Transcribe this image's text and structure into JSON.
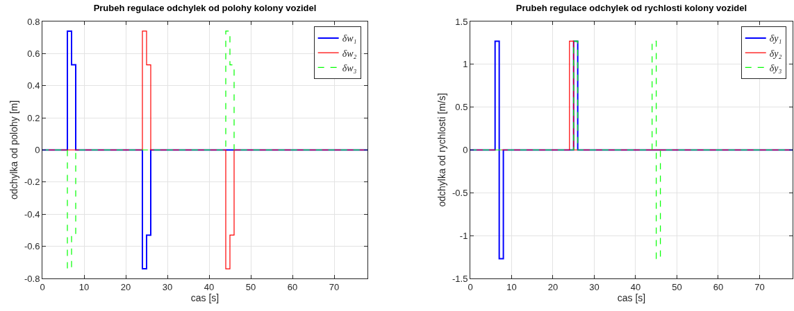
{
  "chart_data": [
    {
      "type": "step",
      "title": "Prubeh regulace odchylek od polohy kolony vozidel",
      "xlabel": "cas [s]",
      "ylabel": "odchylka od polohy [m]",
      "x": [
        0,
        6,
        7,
        8,
        24,
        25,
        26,
        44,
        45,
        46,
        78
      ],
      "series": [
        {
          "name": "δw₁",
          "color": "#0000ff",
          "line_style": "solid",
          "values": [
            0,
            0.74,
            0.53,
            0,
            -0.74,
            -0.53,
            0,
            0,
            0,
            0,
            0
          ]
        },
        {
          "name": "δw₂",
          "color": "#ff0000",
          "line_style": "solid",
          "values": [
            0,
            0,
            0,
            0,
            0.74,
            0.53,
            0,
            -0.74,
            -0.53,
            0,
            0
          ]
        },
        {
          "name": "δw₃",
          "color": "#00ff00",
          "line_style": "dashed",
          "values": [
            0,
            -0.74,
            -0.53,
            0,
            0,
            0,
            0,
            0.74,
            0.53,
            0,
            0
          ]
        }
      ],
      "xlim": [
        0,
        78
      ],
      "xticks": [
        0,
        10,
        20,
        30,
        40,
        50,
        60,
        70
      ],
      "ylim": [
        -0.8,
        0.8
      ],
      "yticks": [
        -0.8,
        -0.6,
        -0.4,
        -0.2,
        0,
        0.2,
        0.4,
        0.6,
        0.8
      ],
      "grid": true,
      "legend": "top right"
    },
    {
      "type": "step",
      "title": "Prubeh regulace odchylek od rychlosti kolony vozidel",
      "xlabel": "cas [s]",
      "ylabel": "odchylka od rychlosti [m/s]",
      "x": [
        0,
        6,
        7,
        8,
        24,
        25,
        26,
        44,
        45,
        46,
        78
      ],
      "series": [
        {
          "name": "δy₁",
          "color": "#0000ff",
          "line_style": "solid",
          "values": [
            0,
            1.27,
            -1.27,
            0,
            0,
            1.27,
            0,
            0,
            0,
            0,
            0
          ]
        },
        {
          "name": "δy₂",
          "color": "#ff0000",
          "line_style": "solid",
          "values": [
            0,
            0,
            0,
            0,
            1.27,
            0,
            0,
            0,
            0,
            0,
            0
          ]
        },
        {
          "name": "δy₃",
          "color": "#00ff00",
          "line_style": "dashed",
          "values": [
            0,
            0,
            0,
            0,
            0,
            1.27,
            0,
            1.27,
            -1.27,
            0,
            0
          ]
        }
      ],
      "xlim": [
        0,
        78
      ],
      "xticks": [
        0,
        10,
        20,
        30,
        40,
        50,
        60,
        70
      ],
      "ylim": [
        -1.5,
        1.5
      ],
      "yticks": [
        -1.5,
        -1,
        -0.5,
        0,
        0.5,
        1,
        1.5
      ],
      "grid": true,
      "legend": "top right"
    }
  ]
}
